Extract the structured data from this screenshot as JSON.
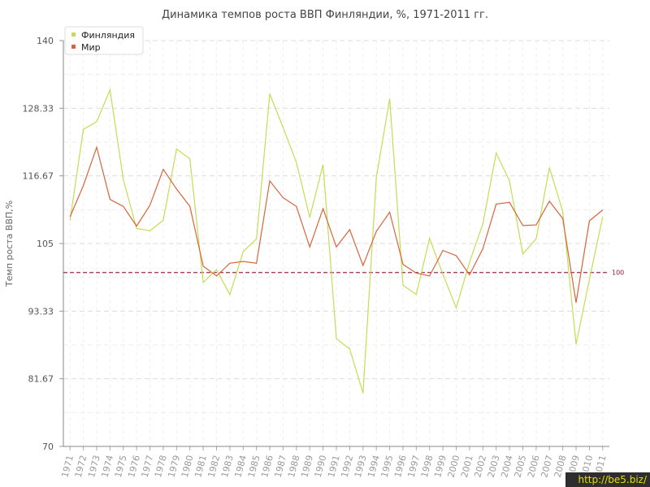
{
  "chart_data": {
    "type": "line",
    "title": "Динамика темпов роста ВВП Финляндии, %, 1971-2011 гг.",
    "ylabel": "Темп роста ВВП,%",
    "xlabel": "",
    "ylim": [
      70,
      140
    ],
    "yticks": [
      "140",
      "128.33",
      "116.67",
      "105",
      "93.33",
      "81.67",
      "70"
    ],
    "ytick_values": [
      140,
      128.33,
      116.67,
      105,
      93.33,
      81.67,
      70
    ],
    "x": [
      "1971",
      "1972",
      "1973",
      "1974",
      "1975",
      "1976",
      "1977",
      "1978",
      "1979",
      "1980",
      "1981",
      "1982",
      "1983",
      "1984",
      "1985",
      "1986",
      "1987",
      "1988",
      "1989",
      "1990",
      "1991",
      "1992",
      "1993",
      "1994",
      "1995",
      "1996",
      "1997",
      "1998",
      "1999",
      "2000",
      "2001",
      "2002",
      "2003",
      "2004",
      "2005",
      "2006",
      "2007",
      "2008",
      "2009",
      "2010",
      "2011"
    ],
    "series": [
      {
        "name": "Финляндия",
        "color": "#c5dc55",
        "values": [
          109,
          124.7,
          126,
          131.5,
          116,
          107.6,
          107.2,
          109,
          121.3,
          119.6,
          98.3,
          100.5,
          96.2,
          103.6,
          105.8,
          130.8,
          125,
          119,
          109.5,
          118.6,
          88.6,
          86.8,
          79.2,
          116.4,
          130,
          97.8,
          96.2,
          105.9,
          99.7,
          93.9,
          101.8,
          108.4,
          120.6,
          115.8,
          103.2,
          105.8,
          118.1,
          110.5,
          87.6,
          98.8,
          109.6
        ]
      },
      {
        "name": "Мир",
        "color": "#d8643c",
        "values": [
          109.6,
          115,
          121.6,
          112.6,
          111.4,
          108,
          111.6,
          117.8,
          114.4,
          111.4,
          101.1,
          99.4,
          101.6,
          101.9,
          101.6,
          115.8,
          112.9,
          111.4,
          104.4,
          111,
          104.4,
          107.4,
          101.2,
          107.1,
          110.4,
          101.4,
          99.9,
          99.4,
          103.8,
          102.9,
          99.6,
          104.1,
          111.8,
          112.1,
          108.1,
          108.2,
          112.3,
          109.3,
          94.8,
          108.9,
          110.8
        ]
      }
    ],
    "reference_line": {
      "value": 100,
      "label": "100",
      "color": "#9b2a40"
    },
    "grid": true,
    "legend_placement": "top-left"
  },
  "watermark": "http://be5.biz/"
}
